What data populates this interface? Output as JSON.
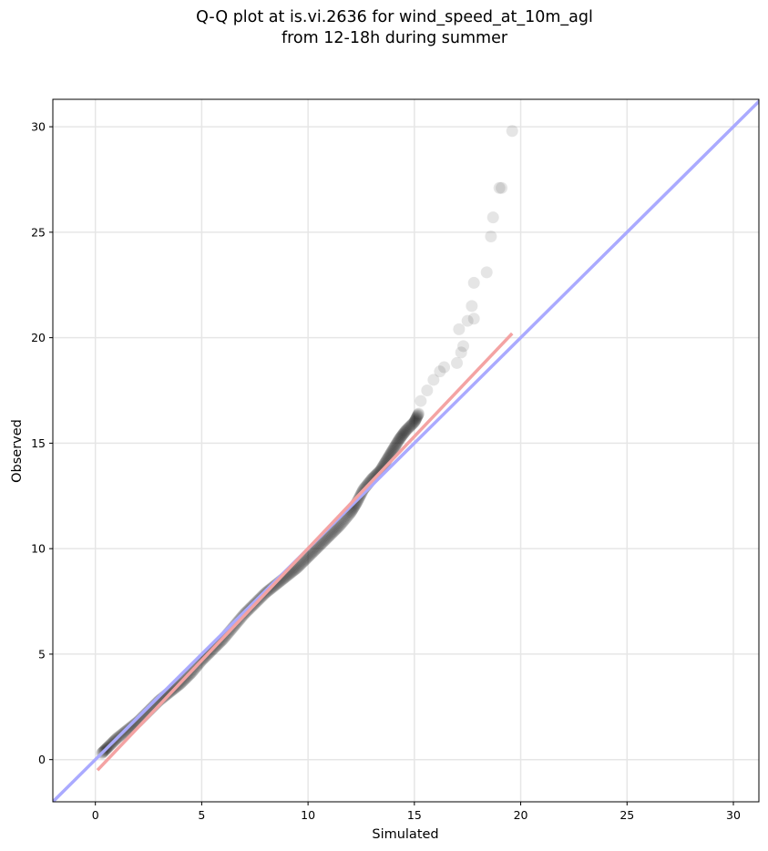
{
  "chart_data": {
    "type": "scatter",
    "title_line1": "Q-Q plot at is.vi.2636 for wind_speed_at_10m_agl",
    "title_line2": "from 12-18h during summer",
    "xlabel": "Simulated",
    "ylabel": "Observed",
    "xlim": [
      -2.0,
      31.2
    ],
    "ylim": [
      -2.0,
      31.3
    ],
    "xticks": [
      0,
      5,
      10,
      15,
      20,
      25,
      30
    ],
    "yticks": [
      0,
      5,
      10,
      15,
      20,
      25,
      30
    ],
    "grid": true,
    "identity_line": {
      "color": "#aaaaff",
      "from": [
        -2.0,
        -2.0
      ],
      "to": [
        31.3,
        31.3
      ]
    },
    "fit_line": {
      "color": "#f4a3a3",
      "from": [
        0.1,
        -0.5
      ],
      "to": [
        19.6,
        20.2
      ]
    },
    "marker_color": "#000000",
    "dense_quantiles": [
      [
        0.3,
        0.3
      ],
      [
        0.6,
        0.6
      ],
      [
        1.0,
        1.0
      ],
      [
        1.5,
        1.4
      ],
      [
        2.0,
        1.8
      ],
      [
        2.5,
        2.3
      ],
      [
        3.0,
        2.8
      ],
      [
        3.5,
        3.2
      ],
      [
        4.0,
        3.6
      ],
      [
        4.5,
        4.1
      ],
      [
        5.0,
        4.7
      ],
      [
        5.5,
        5.2
      ],
      [
        6.0,
        5.7
      ],
      [
        6.5,
        6.3
      ],
      [
        7.0,
        6.9
      ],
      [
        7.5,
        7.4
      ],
      [
        8.0,
        7.9
      ],
      [
        8.5,
        8.3
      ],
      [
        9.0,
        8.7
      ],
      [
        9.5,
        9.1
      ],
      [
        10.0,
        9.6
      ],
      [
        10.5,
        10.1
      ],
      [
        11.0,
        10.6
      ],
      [
        11.5,
        11.1
      ],
      [
        12.0,
        11.7
      ],
      [
        12.3,
        12.2
      ],
      [
        12.6,
        12.8
      ],
      [
        13.0,
        13.3
      ],
      [
        13.4,
        13.7
      ],
      [
        13.7,
        14.2
      ],
      [
        14.0,
        14.7
      ],
      [
        14.3,
        15.2
      ],
      [
        14.6,
        15.6
      ],
      [
        15.0,
        16.0
      ],
      [
        15.2,
        16.4
      ]
    ],
    "tail_quantiles": [
      [
        15.3,
        17.0
      ],
      [
        15.6,
        17.5
      ],
      [
        15.9,
        18.0
      ],
      [
        16.2,
        18.4
      ],
      [
        16.4,
        18.6
      ],
      [
        17.0,
        18.8
      ],
      [
        17.2,
        19.3
      ],
      [
        17.3,
        19.6
      ],
      [
        17.1,
        20.4
      ],
      [
        17.5,
        20.8
      ],
      [
        17.8,
        20.9
      ],
      [
        17.7,
        21.5
      ],
      [
        17.8,
        22.6
      ],
      [
        18.4,
        23.1
      ],
      [
        18.6,
        24.8
      ],
      [
        18.7,
        25.7
      ],
      [
        19.0,
        27.1
      ],
      [
        19.1,
        27.1
      ],
      [
        19.6,
        29.8
      ]
    ]
  }
}
